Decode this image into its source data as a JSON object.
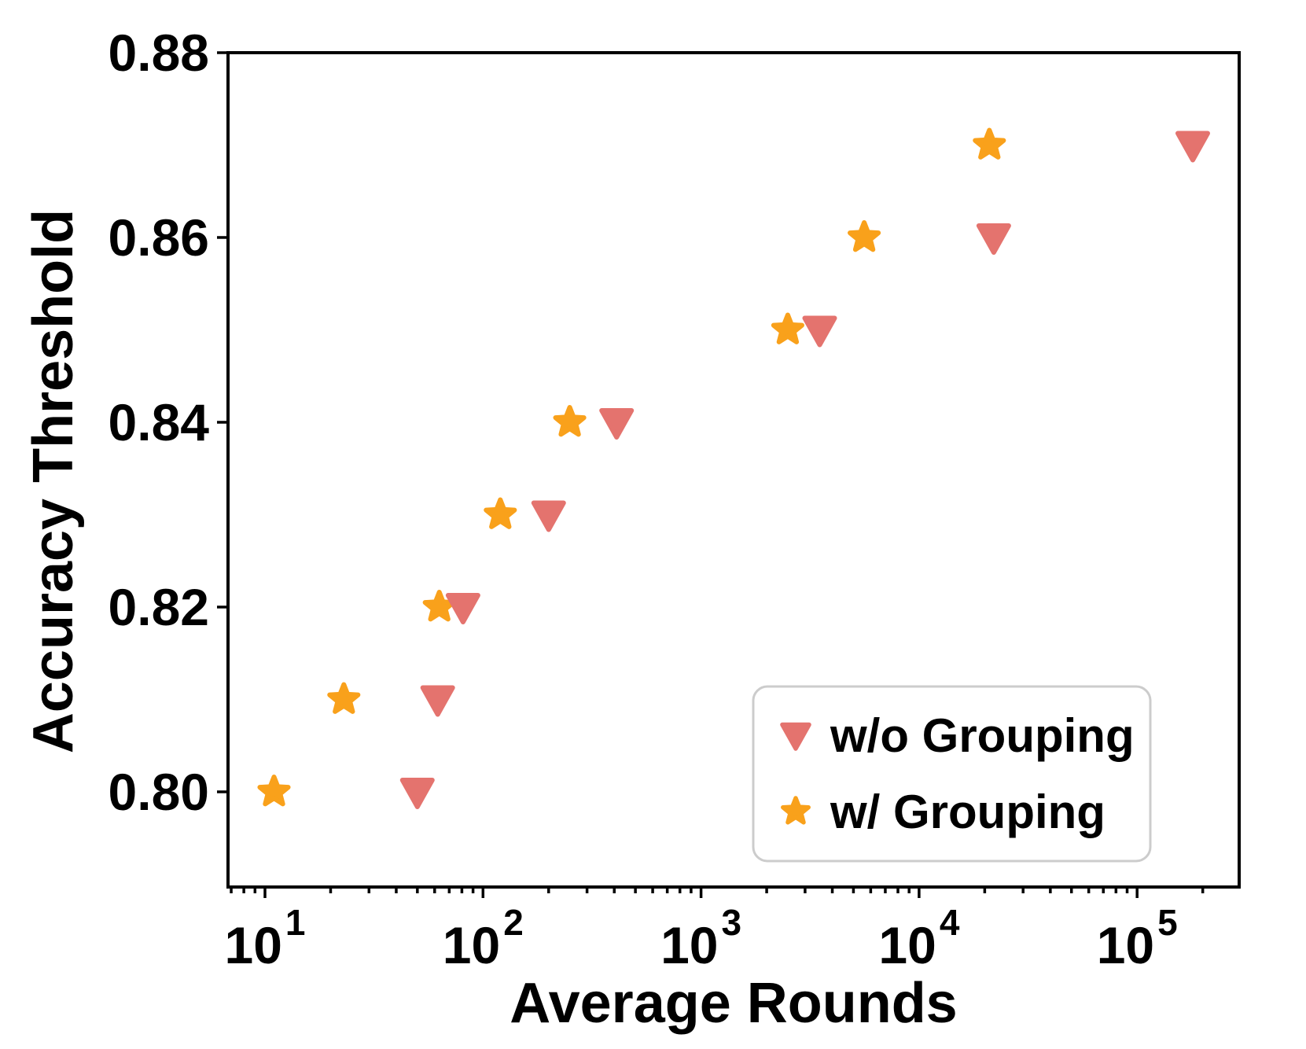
{
  "chart_data": {
    "type": "scatter",
    "title": "",
    "xlabel": "Average Rounds",
    "ylabel": "Accuracy Threshold",
    "x_scale": "log",
    "x_base_label": "10",
    "x_tick_exponents": [
      1,
      2,
      3,
      4,
      5
    ],
    "y_tick_labels": [
      "0.80",
      "0.82",
      "0.84",
      "0.86",
      "0.88"
    ],
    "xlim": [
      6.8,
      295000
    ],
    "ylim": [
      0.7897,
      0.88
    ],
    "grid": false,
    "legend_position": "lower right",
    "series": [
      {
        "name": "w/o Grouping",
        "marker": "triangle-down",
        "color": "#E4736E",
        "points": [
          [
            50,
            0.8
          ],
          [
            62,
            0.81
          ],
          [
            81,
            0.82
          ],
          [
            200,
            0.83
          ],
          [
            410,
            0.84
          ],
          [
            3500,
            0.85
          ],
          [
            22000,
            0.86
          ],
          [
            180000,
            0.87
          ]
        ]
      },
      {
        "name": "w/ Grouping",
        "marker": "star",
        "color": "#F9A11B",
        "points": [
          [
            11,
            0.8
          ],
          [
            23,
            0.81
          ],
          [
            63,
            0.82
          ],
          [
            120,
            0.83
          ],
          [
            250,
            0.84
          ],
          [
            2500,
            0.85
          ],
          [
            5600,
            0.86
          ],
          [
            21000,
            0.87
          ]
        ]
      }
    ]
  }
}
